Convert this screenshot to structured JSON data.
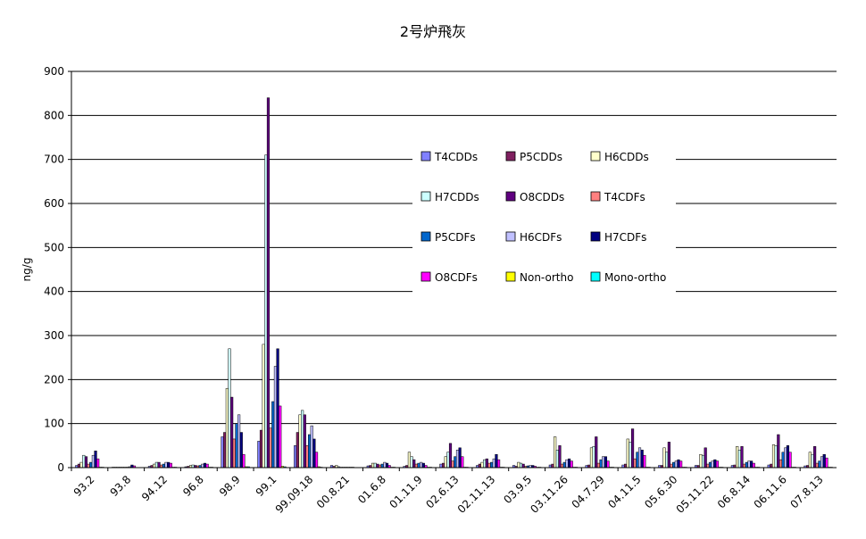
{
  "chart_data": {
    "type": "bar",
    "title": "2号炉飛灰",
    "ylabel": "ng/g",
    "xlabel": "",
    "ylim": [
      0,
      900
    ],
    "yticks": [
      0,
      100,
      200,
      300,
      400,
      500,
      600,
      700,
      800,
      900
    ],
    "grid": true,
    "legend_position": "upper-right, inside plot",
    "categories": [
      "93.2",
      "93.8",
      "94.12",
      "96.8",
      "98.9",
      "99.1",
      "99.09.18",
      "00.8.21",
      "01.6.8",
      "01.11.9",
      "02.6.13",
      "02.11.13",
      "03.9.5",
      "03.11.26",
      "04.7.29",
      "04.11.5",
      "05.6.30",
      "05.11.22",
      "06.8.14",
      "06.11.6",
      "07.8.13"
    ],
    "series": [
      {
        "name": "T4CDDs",
        "color": "#8080ff",
        "values": [
          5,
          1,
          3,
          2,
          70,
          60,
          50,
          5,
          4,
          3,
          8,
          5,
          5,
          6,
          5,
          6,
          5,
          5,
          5,
          6,
          4
        ]
      },
      {
        "name": "P5CDDs",
        "color": "#802060",
        "values": [
          8,
          1,
          5,
          3,
          80,
          85,
          80,
          3,
          5,
          5,
          10,
          8,
          3,
          8,
          6,
          8,
          5,
          5,
          6,
          8,
          5
        ]
      },
      {
        "name": "H6CDDs",
        "color": "#ffffcc",
        "values": [
          12,
          1,
          8,
          5,
          180,
          280,
          120,
          5,
          10,
          35,
          25,
          12,
          12,
          70,
          45,
          65,
          45,
          30,
          48,
          52,
          35
        ]
      },
      {
        "name": "H7CDDs",
        "color": "#ccffff",
        "values": [
          28,
          1,
          12,
          6,
          270,
          710,
          130,
          2,
          10,
          25,
          35,
          18,
          10,
          40,
          48,
          58,
          35,
          28,
          40,
          50,
          30
        ]
      },
      {
        "name": "O8CDDs",
        "color": "#600080",
        "values": [
          25,
          1,
          12,
          5,
          160,
          840,
          120,
          1,
          8,
          18,
          55,
          20,
          8,
          50,
          70,
          88,
          58,
          45,
          48,
          75,
          48
        ]
      },
      {
        "name": "T4CDFs",
        "color": "#ff8080",
        "values": [
          8,
          1,
          6,
          4,
          65,
          90,
          50,
          1,
          6,
          8,
          15,
          10,
          3,
          8,
          10,
          20,
          8,
          8,
          8,
          18,
          10
        ]
      },
      {
        "name": "P5CDFs",
        "color": "#0066cc",
        "values": [
          12,
          1,
          8,
          5,
          100,
          150,
          75,
          1,
          8,
          10,
          25,
          12,
          4,
          12,
          18,
          35,
          12,
          12,
          12,
          35,
          15
        ]
      },
      {
        "name": "H6CDFs",
        "color": "#c0c0ff",
        "values": [
          28,
          2,
          12,
          8,
          120,
          230,
          95,
          1,
          12,
          12,
          40,
          20,
          5,
          18,
          25,
          45,
          15,
          15,
          15,
          45,
          25
        ]
      },
      {
        "name": "H7CDFs",
        "color": "#000080",
        "values": [
          38,
          6,
          12,
          10,
          80,
          270,
          65,
          1,
          10,
          10,
          45,
          30,
          5,
          20,
          25,
          40,
          18,
          18,
          15,
          50,
          30
        ]
      },
      {
        "name": "O8CDFs",
        "color": "#ff00ff",
        "values": [
          20,
          4,
          10,
          8,
          30,
          140,
          35,
          1,
          5,
          5,
          25,
          18,
          3,
          15,
          15,
          28,
          15,
          15,
          10,
          35,
          22
        ]
      },
      {
        "name": "Non-ortho",
        "color": "#ffff00",
        "values": [
          1,
          0,
          1,
          1,
          2,
          3,
          2,
          0,
          1,
          1,
          1,
          1,
          1,
          1,
          1,
          1,
          1,
          1,
          1,
          1,
          1
        ]
      },
      {
        "name": "Mono-ortho",
        "color": "#00ffff",
        "values": [
          1,
          0,
          1,
          1,
          2,
          2,
          1,
          0,
          1,
          1,
          1,
          1,
          1,
          1,
          1,
          1,
          1,
          1,
          1,
          1,
          1
        ]
      }
    ]
  }
}
